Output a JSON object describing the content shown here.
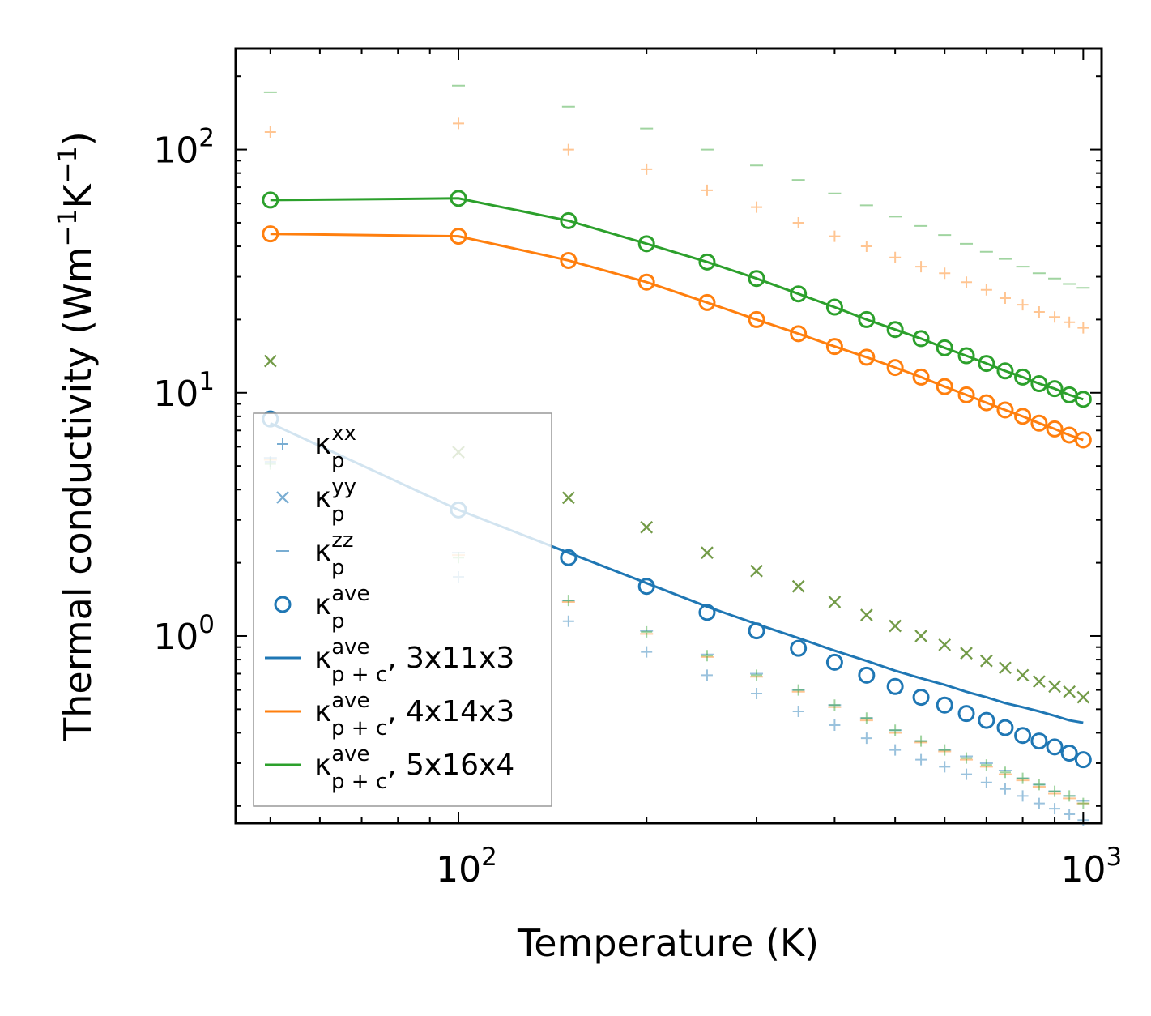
{
  "chart_data": {
    "type": "scatter",
    "xlabel": "Temperature (K)",
    "ylabel_base": "Thermal conductivity (Wm",
    "ylabel_parts": [
      "Thermal conductivity (Wm",
      "−1",
      "K",
      "−1",
      ")"
    ],
    "xscale": "log",
    "yscale": "log",
    "xlim": [
      44,
      1070
    ],
    "ylim": [
      0.17,
      260
    ],
    "xticks": [
      {
        "value": 100,
        "base": "10",
        "exp": "2"
      },
      {
        "value": 1000,
        "base": "10",
        "exp": "3"
      }
    ],
    "yticks": [
      {
        "value": 1,
        "base": "10",
        "exp": "0"
      },
      {
        "value": 10,
        "base": "10",
        "exp": "1"
      },
      {
        "value": 100,
        "base": "10",
        "exp": "2"
      }
    ],
    "legend_position": "lower-left",
    "x": [
      50,
      100,
      150,
      200,
      250,
      300,
      350,
      400,
      450,
      500,
      550,
      600,
      650,
      700,
      750,
      800,
      850,
      900,
      950,
      1000
    ],
    "series": [
      {
        "name": "3x11x3",
        "color": "#1f77b4",
        "marker": "plus",
        "component": "xx",
        "values": [
          5.2,
          1.75,
          1.15,
          0.86,
          0.69,
          0.58,
          0.49,
          0.43,
          0.38,
          0.34,
          0.31,
          0.29,
          0.27,
          0.25,
          0.235,
          0.22,
          0.205,
          0.195,
          0.185,
          0.175
        ]
      },
      {
        "name": "3x11x3",
        "color": "#1f77b4",
        "marker": "cross",
        "component": "yy",
        "values": [
          13.5,
          5.7,
          3.7,
          2.8,
          2.2,
          1.85,
          1.6,
          1.38,
          1.22,
          1.1,
          1.0,
          0.92,
          0.85,
          0.79,
          0.74,
          0.69,
          0.65,
          0.62,
          0.59,
          0.56
        ]
      },
      {
        "name": "3x11x3",
        "color": "#1f77b4",
        "marker": "dash",
        "component": "zz",
        "values": [
          5.4,
          2.2,
          1.4,
          1.05,
          0.84,
          0.7,
          0.6,
          0.52,
          0.46,
          0.41,
          0.37,
          0.34,
          0.32,
          0.3,
          0.28,
          0.26,
          0.245,
          0.23,
          0.22,
          0.21
        ]
      },
      {
        "name": "3x11x3",
        "color": "#1f77b4",
        "marker": "circle",
        "component": "ave",
        "values": [
          7.8,
          3.3,
          2.1,
          1.6,
          1.25,
          1.05,
          0.89,
          0.78,
          0.69,
          0.62,
          0.56,
          0.52,
          0.48,
          0.45,
          0.42,
          0.39,
          0.37,
          0.35,
          0.33,
          0.31
        ]
      },
      {
        "name": "3x11x3",
        "color": "#1f77b4",
        "marker": "line",
        "component": "p+c",
        "values": [
          7.5,
          3.3,
          2.2,
          1.65,
          1.32,
          1.12,
          0.98,
          0.87,
          0.79,
          0.72,
          0.67,
          0.63,
          0.59,
          0.56,
          0.53,
          0.51,
          0.49,
          0.47,
          0.45,
          0.44
        ]
      },
      {
        "name": "4x14x3",
        "color": "#ff7f0e",
        "marker": "plus",
        "component": "xx",
        "values": [
          118,
          128,
          100,
          83,
          68,
          58,
          50,
          44,
          40,
          36,
          33,
          31,
          28.5,
          26.5,
          24.5,
          23,
          21.5,
          20.5,
          19.5,
          18.5
        ]
      },
      {
        "name": "4x14x3",
        "color": "#ff7f0e",
        "marker": "cross",
        "component": "yy",
        "values": [
          13.5,
          5.7,
          3.7,
          2.8,
          2.2,
          1.85,
          1.6,
          1.38,
          1.22,
          1.1,
          1.0,
          0.92,
          0.85,
          0.79,
          0.74,
          0.69,
          0.65,
          0.62,
          0.59,
          0.56
        ]
      },
      {
        "name": "4x14x3",
        "color": "#ff7f0e",
        "marker": "dash",
        "component": "zz",
        "values": [
          5.3,
          2.15,
          1.38,
          1.02,
          0.82,
          0.68,
          0.59,
          0.51,
          0.45,
          0.4,
          0.365,
          0.335,
          0.31,
          0.29,
          0.27,
          0.255,
          0.24,
          0.225,
          0.215,
          0.205
        ]
      },
      {
        "name": "4x14x3",
        "color": "#ff7f0e",
        "marker": "circle",
        "component": "ave",
        "values": [
          45,
          44,
          35,
          28.5,
          23.5,
          20,
          17.5,
          15.5,
          14,
          12.7,
          11.6,
          10.6,
          9.8,
          9.1,
          8.5,
          8,
          7.5,
          7.1,
          6.7,
          6.4
        ]
      },
      {
        "name": "4x14x3",
        "color": "#ff7f0e",
        "marker": "line",
        "component": "p+c",
        "values": [
          45,
          44,
          35,
          28.5,
          23.5,
          20,
          17.5,
          15.5,
          14,
          12.7,
          11.6,
          10.6,
          9.8,
          9.1,
          8.5,
          8,
          7.5,
          7.1,
          6.7,
          6.4
        ]
      },
      {
        "name": "5x16x4",
        "color": "#2ca02c",
        "marker": "plus",
        "component": "xx",
        "values": [
          5.1,
          2.1,
          1.4,
          1.04,
          0.83,
          0.69,
          0.6,
          0.52,
          0.46,
          0.41,
          0.37,
          0.34,
          0.315,
          0.295,
          0.275,
          0.26,
          0.245,
          0.23,
          0.22,
          0.205
        ]
      },
      {
        "name": "5x16x4",
        "color": "#2ca02c",
        "marker": "cross",
        "component": "yy",
        "values": [
          13.5,
          5.7,
          3.7,
          2.8,
          2.2,
          1.85,
          1.6,
          1.38,
          1.22,
          1.1,
          1.0,
          0.92,
          0.85,
          0.79,
          0.74,
          0.69,
          0.65,
          0.62,
          0.59,
          0.56
        ]
      },
      {
        "name": "5x16x4",
        "color": "#2ca02c",
        "marker": "dash",
        "component": "zz",
        "values": [
          172,
          183,
          150,
          122,
          100,
          86,
          75,
          66,
          59,
          53,
          48.5,
          44.5,
          41,
          38,
          35.5,
          33,
          31,
          29.5,
          28,
          27
        ]
      },
      {
        "name": "5x16x4",
        "color": "#2ca02c",
        "marker": "circle",
        "component": "ave",
        "values": [
          62,
          63,
          51,
          41,
          34.5,
          29.5,
          25.5,
          22.5,
          20,
          18.2,
          16.7,
          15.3,
          14.2,
          13.2,
          12.3,
          11.6,
          10.9,
          10.4,
          9.8,
          9.4
        ]
      },
      {
        "name": "5x16x4",
        "color": "#2ca02c",
        "marker": "line",
        "component": "p+c",
        "values": [
          62,
          63,
          51,
          41,
          34.5,
          29.5,
          25.5,
          22.5,
          20,
          18.2,
          16.7,
          15.3,
          14.2,
          13.2,
          12.3,
          11.6,
          10.9,
          10.4,
          9.8,
          9.4
        ]
      }
    ],
    "legend": [
      {
        "marker": "plus",
        "color": "#1f77b4",
        "base": "κ",
        "sup": "xx",
        "sub": "p",
        "suffix": ""
      },
      {
        "marker": "cross",
        "color": "#1f77b4",
        "base": "κ",
        "sup": "yy",
        "sub": "p",
        "suffix": ""
      },
      {
        "marker": "dash",
        "color": "#1f77b4",
        "base": "κ",
        "sup": "zz",
        "sub": "p",
        "suffix": ""
      },
      {
        "marker": "circle",
        "color": "#1f77b4",
        "base": "κ",
        "sup": "ave",
        "sub": "p",
        "suffix": ""
      },
      {
        "marker": "line",
        "color": "#1f77b4",
        "base": "κ",
        "sup": "ave",
        "sub": "p + c",
        "suffix": ", 3x11x3"
      },
      {
        "marker": "line",
        "color": "#ff7f0e",
        "base": "κ",
        "sup": "ave",
        "sub": "p + c",
        "suffix": ", 4x14x3"
      },
      {
        "marker": "line",
        "color": "#2ca02c",
        "base": "κ",
        "sup": "ave",
        "sub": "p + c",
        "suffix": ", 5x16x4"
      }
    ]
  }
}
